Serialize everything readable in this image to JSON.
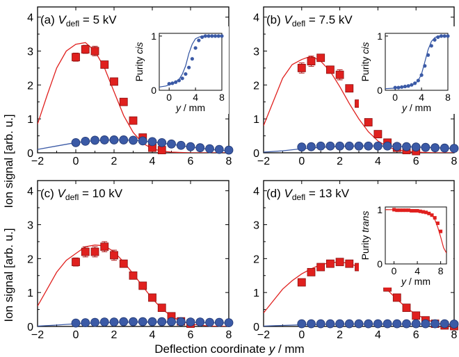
{
  "figure": {
    "ylabel": "Ion signal [arb. u.]",
    "xlabel": "Deflection coordinate y / mm"
  },
  "colors": {
    "red": "#e0201e",
    "blue": "#3b5aa6",
    "blue_line": "#2c4f9f",
    "axis": "#000000"
  },
  "chart_data": [
    {
      "type": "scatter",
      "panel_label": "(a)",
      "title_prefix": "V",
      "title_sub": "defl",
      "title_suffix": " = 5 kV",
      "xlim": [
        -2,
        8
      ],
      "ylim": [
        0,
        4.3
      ],
      "xticks": [
        -2,
        0,
        2,
        4,
        6,
        8
      ],
      "yticks": [
        0,
        1,
        2,
        3,
        4
      ],
      "series": [
        {
          "marker": "square",
          "color": "#e0201e",
          "x": [
            0,
            0.5,
            1,
            1.5,
            2,
            2.5,
            3,
            3.5,
            4,
            4.5
          ],
          "y": [
            2.82,
            3.05,
            3.0,
            2.6,
            2.1,
            1.5,
            0.95,
            0.45,
            0.15,
            0.08
          ],
          "err": [
            0.12,
            0.12,
            0.14,
            0.08,
            0.08,
            0.05,
            0.1,
            0.05,
            0.03,
            0.02
          ]
        },
        {
          "marker": "circle",
          "color": "#3b5aa6",
          "x": [
            0,
            0.5,
            1,
            1.5,
            2,
            2.5,
            3,
            3.5,
            4,
            4.5,
            5,
            5.5,
            6,
            6.5,
            7,
            7.5,
            8
          ],
          "y": [
            0.3,
            0.34,
            0.37,
            0.38,
            0.38,
            0.38,
            0.37,
            0.35,
            0.33,
            0.3,
            0.26,
            0.22,
            0.18,
            0.15,
            0.12,
            0.1,
            0.08
          ]
        },
        {
          "line": true,
          "color": "#e0201e",
          "x": [
            -2,
            -1.5,
            -1,
            -0.5,
            0,
            0.5,
            1,
            1.5,
            2,
            2.5,
            3,
            3.5,
            4,
            4.5,
            5,
            5.5,
            6,
            7,
            8
          ],
          "y": [
            0.85,
            1.7,
            2.5,
            3.0,
            3.2,
            3.25,
            3.0,
            2.5,
            1.8,
            1.1,
            0.6,
            0.28,
            0.12,
            0.05,
            0.02,
            0.01,
            0,
            0,
            0
          ]
        },
        {
          "line": true,
          "color": "#3b5aa6",
          "x": [
            -2,
            -1,
            0,
            1,
            2,
            3,
            4,
            5,
            6,
            7,
            8
          ],
          "y": [
            0.1,
            0.2,
            0.3,
            0.36,
            0.38,
            0.37,
            0.32,
            0.25,
            0.17,
            0.1,
            0.06
          ]
        }
      ],
      "inset": {
        "ylabel": "Purity ",
        "ylabel_italic": "cis",
        "xlabel": "y / mm",
        "xlim": [
          -1.5,
          8
        ],
        "ylim": [
          0,
          1.05
        ],
        "xticks": [
          0,
          4,
          8
        ],
        "yticks": [
          0,
          1
        ],
        "points": {
          "x": [
            0,
            0.5,
            1,
            1.5,
            2,
            2.5,
            3,
            3.5,
            4,
            4.5,
            5,
            5.5,
            6,
            6.5,
            7,
            7.5,
            8
          ],
          "y": [
            0.12,
            0.13,
            0.15,
            0.18,
            0.22,
            0.3,
            0.42,
            0.58,
            0.78,
            0.92,
            0.98,
            1.0,
            1.0,
            1.0,
            1.0,
            1.0,
            1.0
          ]
        },
        "line": {
          "x": [
            -1.5,
            -0.5,
            0.5,
            1.5,
            2,
            2.5,
            3,
            3.5,
            4,
            4.5,
            5,
            6,
            8
          ],
          "y": [
            0.06,
            0.08,
            0.12,
            0.2,
            0.3,
            0.45,
            0.68,
            0.85,
            0.95,
            0.98,
            1.0,
            1.0,
            1.0
          ]
        }
      }
    },
    {
      "type": "scatter",
      "panel_label": "(b)",
      "title_prefix": "V",
      "title_sub": "defl",
      "title_suffix": " = 7.5 kV",
      "xlim": [
        -2,
        8
      ],
      "ylim": [
        0,
        4.3
      ],
      "xticks": [
        -2,
        0,
        2,
        4,
        6,
        8
      ],
      "yticks": [
        0,
        1,
        2,
        3,
        4
      ],
      "series": [
        {
          "marker": "square",
          "color": "#e0201e",
          "x": [
            0,
            0.5,
            1,
            1.5,
            2,
            2.5,
            3,
            3.5,
            4,
            4.5,
            5,
            5.5,
            6
          ],
          "y": [
            2.5,
            2.7,
            2.8,
            2.45,
            2.3,
            1.9,
            1.45,
            0.9,
            0.55,
            0.3,
            0.15,
            0.08,
            0.05
          ],
          "err": [
            0.15,
            0.15,
            0.1,
            0.1,
            0.15,
            0.08,
            0.05,
            0.05,
            0.04,
            0.03,
            0.02,
            0.02,
            0.02
          ]
        },
        {
          "marker": "circle",
          "color": "#3b5aa6",
          "x": [
            0,
            0.5,
            1,
            1.5,
            2,
            2.5,
            3,
            3.5,
            4,
            4.5,
            5,
            5.5,
            6,
            6.5,
            7,
            7.5,
            8
          ],
          "y": [
            0.17,
            0.18,
            0.2,
            0.2,
            0.2,
            0.2,
            0.2,
            0.2,
            0.2,
            0.2,
            0.19,
            0.18,
            0.17,
            0.16,
            0.15,
            0.14,
            0.13
          ]
        },
        {
          "line": true,
          "color": "#e0201e",
          "x": [
            -2,
            -1.5,
            -1,
            -0.5,
            0,
            0.5,
            1,
            1.5,
            2,
            2.5,
            3,
            3.5,
            4,
            4.5,
            5,
            5.5,
            6,
            7,
            8
          ],
          "y": [
            0.8,
            1.5,
            2.2,
            2.6,
            2.75,
            2.85,
            2.7,
            2.4,
            1.95,
            1.45,
            1.0,
            0.62,
            0.35,
            0.18,
            0.08,
            0.04,
            0.02,
            0,
            0
          ]
        },
        {
          "line": true,
          "color": "#3b5aa6",
          "x": [
            -2,
            -1,
            0,
            1,
            2,
            3,
            4,
            5,
            6,
            7,
            8
          ],
          "y": [
            0.02,
            0.06,
            0.12,
            0.16,
            0.19,
            0.2,
            0.2,
            0.19,
            0.17,
            0.15,
            0.13
          ]
        }
      ],
      "inset": {
        "ylabel": "Purity ",
        "ylabel_italic": "cis",
        "xlabel": "y / mm",
        "xlim": [
          -1.5,
          8
        ],
        "ylim": [
          0,
          1.05
        ],
        "xticks": [
          0,
          4,
          8
        ],
        "yticks": [
          0,
          1
        ],
        "points": {
          "x": [
            0,
            0.5,
            1,
            1.5,
            2,
            2.5,
            3,
            3.5,
            4,
            4.5,
            5,
            5.5,
            6,
            6.5,
            7,
            7.5,
            8
          ],
          "y": [
            0.05,
            0.05,
            0.06,
            0.07,
            0.08,
            0.1,
            0.13,
            0.18,
            0.28,
            0.45,
            0.65,
            0.82,
            0.93,
            0.98,
            1.0,
            1.0,
            1.0
          ]
        },
        "line": {
          "x": [
            -1.5,
            0,
            1,
            2,
            3,
            3.5,
            4,
            4.5,
            5,
            5.5,
            6,
            6.5,
            7,
            8
          ],
          "y": [
            0.03,
            0.04,
            0.05,
            0.07,
            0.12,
            0.18,
            0.3,
            0.52,
            0.75,
            0.9,
            0.97,
            1.0,
            1.0,
            1.0
          ]
        }
      }
    },
    {
      "type": "scatter",
      "panel_label": "(c)",
      "title_prefix": "V",
      "title_sub": "defl",
      "title_suffix": " = 10 kV",
      "xlim": [
        -2,
        8
      ],
      "ylim": [
        0,
        4.3
      ],
      "xticks": [
        -2,
        0,
        2,
        4,
        6,
        8
      ],
      "yticks": [
        0,
        1,
        2,
        3,
        4
      ],
      "series": [
        {
          "marker": "square",
          "color": "#e0201e",
          "x": [
            0,
            0.5,
            1,
            1.5,
            2,
            2.5,
            3,
            3.5,
            4,
            4.5,
            5,
            5.5,
            6
          ],
          "y": [
            1.9,
            2.2,
            2.2,
            2.35,
            2.1,
            1.85,
            1.5,
            1.2,
            0.85,
            0.55,
            0.3,
            0.15,
            0.08
          ],
          "err": [
            0.12,
            0.15,
            0.15,
            0.15,
            0.15,
            0.08,
            0.06,
            0.06,
            0.04,
            0.03,
            0.02,
            0.02,
            0.02
          ]
        },
        {
          "marker": "circle",
          "color": "#3b5aa6",
          "x": [
            0,
            0.5,
            1,
            1.5,
            2,
            2.5,
            3,
            3.5,
            4,
            4.5,
            5,
            5.5,
            6,
            6.5,
            7,
            7.5,
            8
          ],
          "y": [
            0.1,
            0.11,
            0.12,
            0.13,
            0.13,
            0.14,
            0.14,
            0.14,
            0.14,
            0.14,
            0.14,
            0.14,
            0.13,
            0.13,
            0.12,
            0.12,
            0.11
          ]
        },
        {
          "line": true,
          "color": "#e0201e",
          "x": [
            -2,
            -1.5,
            -1,
            -0.5,
            0,
            0.5,
            1,
            1.5,
            2,
            2.5,
            3,
            3.5,
            4,
            4.5,
            5,
            5.5,
            6,
            7,
            8
          ],
          "y": [
            0.6,
            1.1,
            1.6,
            1.95,
            2.15,
            2.35,
            2.4,
            2.38,
            2.2,
            1.9,
            1.55,
            1.18,
            0.82,
            0.52,
            0.3,
            0.15,
            0.07,
            0.01,
            0
          ]
        },
        {
          "line": true,
          "color": "#3b5aa6",
          "x": [
            -2,
            -1,
            0,
            1,
            2,
            3,
            4,
            5,
            6,
            7,
            8
          ],
          "y": [
            0.01,
            0.04,
            0.08,
            0.1,
            0.12,
            0.13,
            0.13,
            0.13,
            0.12,
            0.11,
            0.1
          ]
        }
      ]
    },
    {
      "type": "scatter",
      "panel_label": "(d)",
      "title_prefix": "V",
      "title_sub": "defl",
      "title_suffix": " = 13 kV",
      "xlim": [
        -2,
        8
      ],
      "ylim": [
        0,
        4.3
      ],
      "xticks": [
        -2,
        0,
        2,
        4,
        6,
        8
      ],
      "yticks": [
        0,
        1,
        2,
        3,
        4
      ],
      "series": [
        {
          "marker": "square",
          "color": "#e0201e",
          "x": [
            0,
            0.5,
            1,
            1.5,
            2,
            2.5,
            3,
            3.5,
            4,
            4.5,
            5,
            5.5,
            6,
            6.5,
            7,
            7.5,
            8
          ],
          "y": [
            1.3,
            1.6,
            1.75,
            1.85,
            1.9,
            1.85,
            1.75,
            1.6,
            1.4,
            1.15,
            0.85,
            0.55,
            0.32,
            0.18,
            0.08,
            0.03,
            0.01
          ],
          "err": [
            0.08,
            0.08,
            0.06,
            0.06,
            0.06,
            0.05,
            0.05,
            0.05,
            0.04,
            0.04,
            0.03,
            0.03,
            0.02,
            0.02,
            0.01,
            0.01,
            0.01
          ]
        },
        {
          "marker": "circle",
          "color": "#3b5aa6",
          "x": [
            0,
            0.5,
            1,
            1.5,
            2,
            2.5,
            3,
            3.5,
            4,
            4.5,
            5,
            5.5,
            6,
            6.5,
            7,
            7.5,
            8
          ],
          "y": [
            0.08,
            0.08,
            0.08,
            0.08,
            0.08,
            0.08,
            0.08,
            0.08,
            0.08,
            0.08,
            0.08,
            0.08,
            0.08,
            0.08,
            0.08,
            0.08,
            0.07
          ]
        },
        {
          "line": true,
          "color": "#e0201e",
          "x": [
            -2,
            -1.5,
            -1,
            -0.5,
            0,
            0.5,
            1,
            1.5,
            2,
            2.5,
            3,
            3.5,
            4,
            4.5,
            5,
            5.5,
            6,
            7,
            8
          ],
          "y": [
            0.4,
            0.75,
            1.1,
            1.35,
            1.55,
            1.7,
            1.82,
            1.88,
            1.9,
            1.86,
            1.75,
            1.58,
            1.35,
            1.08,
            0.8,
            0.55,
            0.35,
            0.1,
            0.02
          ]
        },
        {
          "line": true,
          "color": "#3b5aa6",
          "x": [
            -2,
            -1,
            0,
            1,
            2,
            3,
            4,
            5,
            6,
            7,
            8
          ],
          "y": [
            0.01,
            0.03,
            0.05,
            0.06,
            0.07,
            0.07,
            0.07,
            0.07,
            0.07,
            0.07,
            0.07
          ]
        }
      ],
      "inset": {
        "ylabel": "Purity ",
        "ylabel_italic": "trans",
        "xlabel": "y / mm",
        "xlim": [
          -1.5,
          9
        ],
        "ylim": [
          0,
          1.05
        ],
        "xticks": [
          0,
          4,
          8
        ],
        "yticks": [
          0,
          1
        ],
        "points": {
          "x": [
            0,
            0.5,
            1,
            1.5,
            2,
            2.5,
            3,
            3.5,
            4,
            4.5,
            5,
            5.5,
            6,
            6.5,
            7,
            7.5,
            8
          ],
          "y": [
            1.0,
            0.99,
            0.99,
            0.99,
            0.99,
            0.99,
            0.98,
            0.98,
            0.98,
            0.97,
            0.96,
            0.95,
            0.93,
            0.9,
            0.85,
            0.75,
            0.6
          ]
        },
        "square_points": true,
        "line": {
          "x": [
            -1.5,
            0,
            1,
            2,
            3,
            4,
            5,
            6,
            6.5,
            7,
            7.5,
            8,
            8.5,
            9
          ],
          "y": [
            1.0,
            1.0,
            0.99,
            0.99,
            0.99,
            0.98,
            0.97,
            0.94,
            0.9,
            0.82,
            0.68,
            0.5,
            0.3,
            0.2
          ]
        }
      }
    }
  ]
}
